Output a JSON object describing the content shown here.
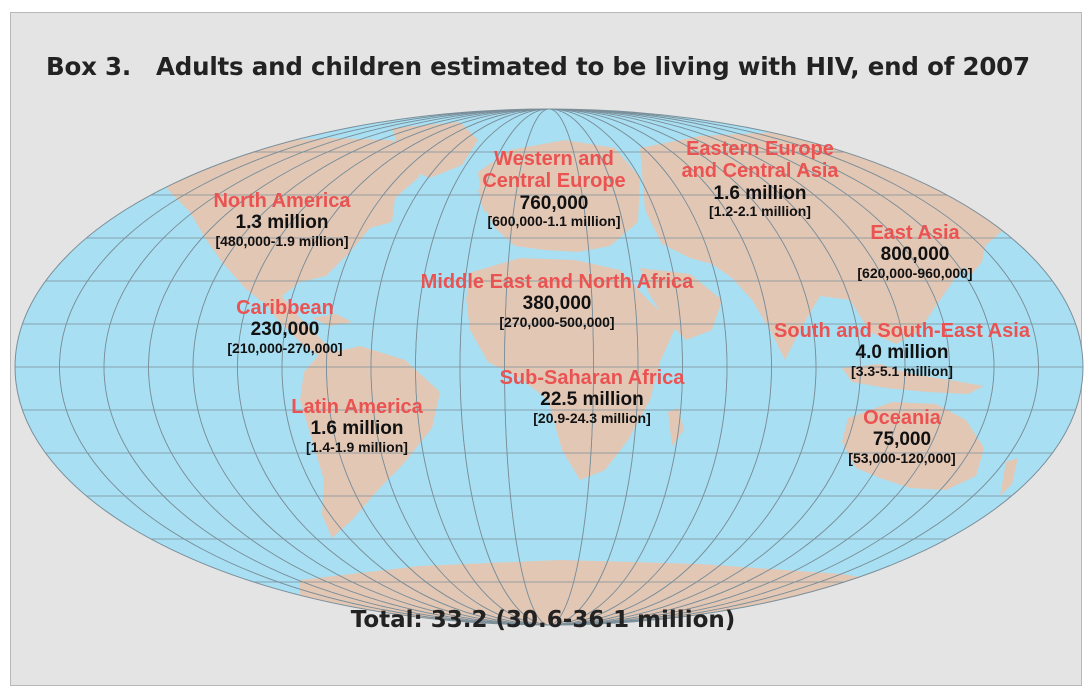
{
  "title": {
    "box_label": "Box 3.",
    "text": "Adults and children estimated to be living with HIV, end of 2007"
  },
  "colors": {
    "ocean": "#a8dff2",
    "land": "#e3c7b5",
    "graticule": "#7b8f9a",
    "region_name": "#ea5352",
    "panel_background": "#e4e4e4"
  },
  "regions": [
    {
      "key": "north_america",
      "name_lines": [
        "North America"
      ],
      "value": "1.3 million",
      "range": "[480,000-1.9 million]"
    },
    {
      "key": "caribbean",
      "name_lines": [
        "Caribbean"
      ],
      "value": "230,000",
      "range": "[210,000-270,000]"
    },
    {
      "key": "latin_america",
      "name_lines": [
        "Latin America"
      ],
      "value": "1.6 million",
      "range": "[1.4-1.9 million]"
    },
    {
      "key": "western_central_europe",
      "name_lines": [
        "Western and",
        "Central Europe"
      ],
      "value": "760,000",
      "range": "[600,000-1.1 million]"
    },
    {
      "key": "eastern_europe_central_asia",
      "name_lines": [
        "Eastern Europe",
        "and Central Asia"
      ],
      "value": "1.6 million",
      "range": "[1.2-2.1 million]"
    },
    {
      "key": "middle_east_north_africa",
      "name_lines": [
        "Middle East and North Africa"
      ],
      "value": "380,000",
      "range": "[270,000-500,000]"
    },
    {
      "key": "sub_saharan_africa",
      "name_lines": [
        "Sub-Saharan Africa"
      ],
      "value": "22.5 million",
      "range": "[20.9-24.3 million]"
    },
    {
      "key": "east_asia",
      "name_lines": [
        "East Asia"
      ],
      "value": "800,000",
      "range": "[620,000-960,000]"
    },
    {
      "key": "south_southeast_asia",
      "name_lines": [
        "South and South-East Asia"
      ],
      "value": "4.0 million",
      "range": "[3.3-5.1 million]"
    },
    {
      "key": "oceania",
      "name_lines": [
        "Oceania"
      ],
      "value": "75,000",
      "range": "[53,000-120,000]"
    }
  ],
  "total": "Total: 33.2 (30.6-36.1 million)"
}
